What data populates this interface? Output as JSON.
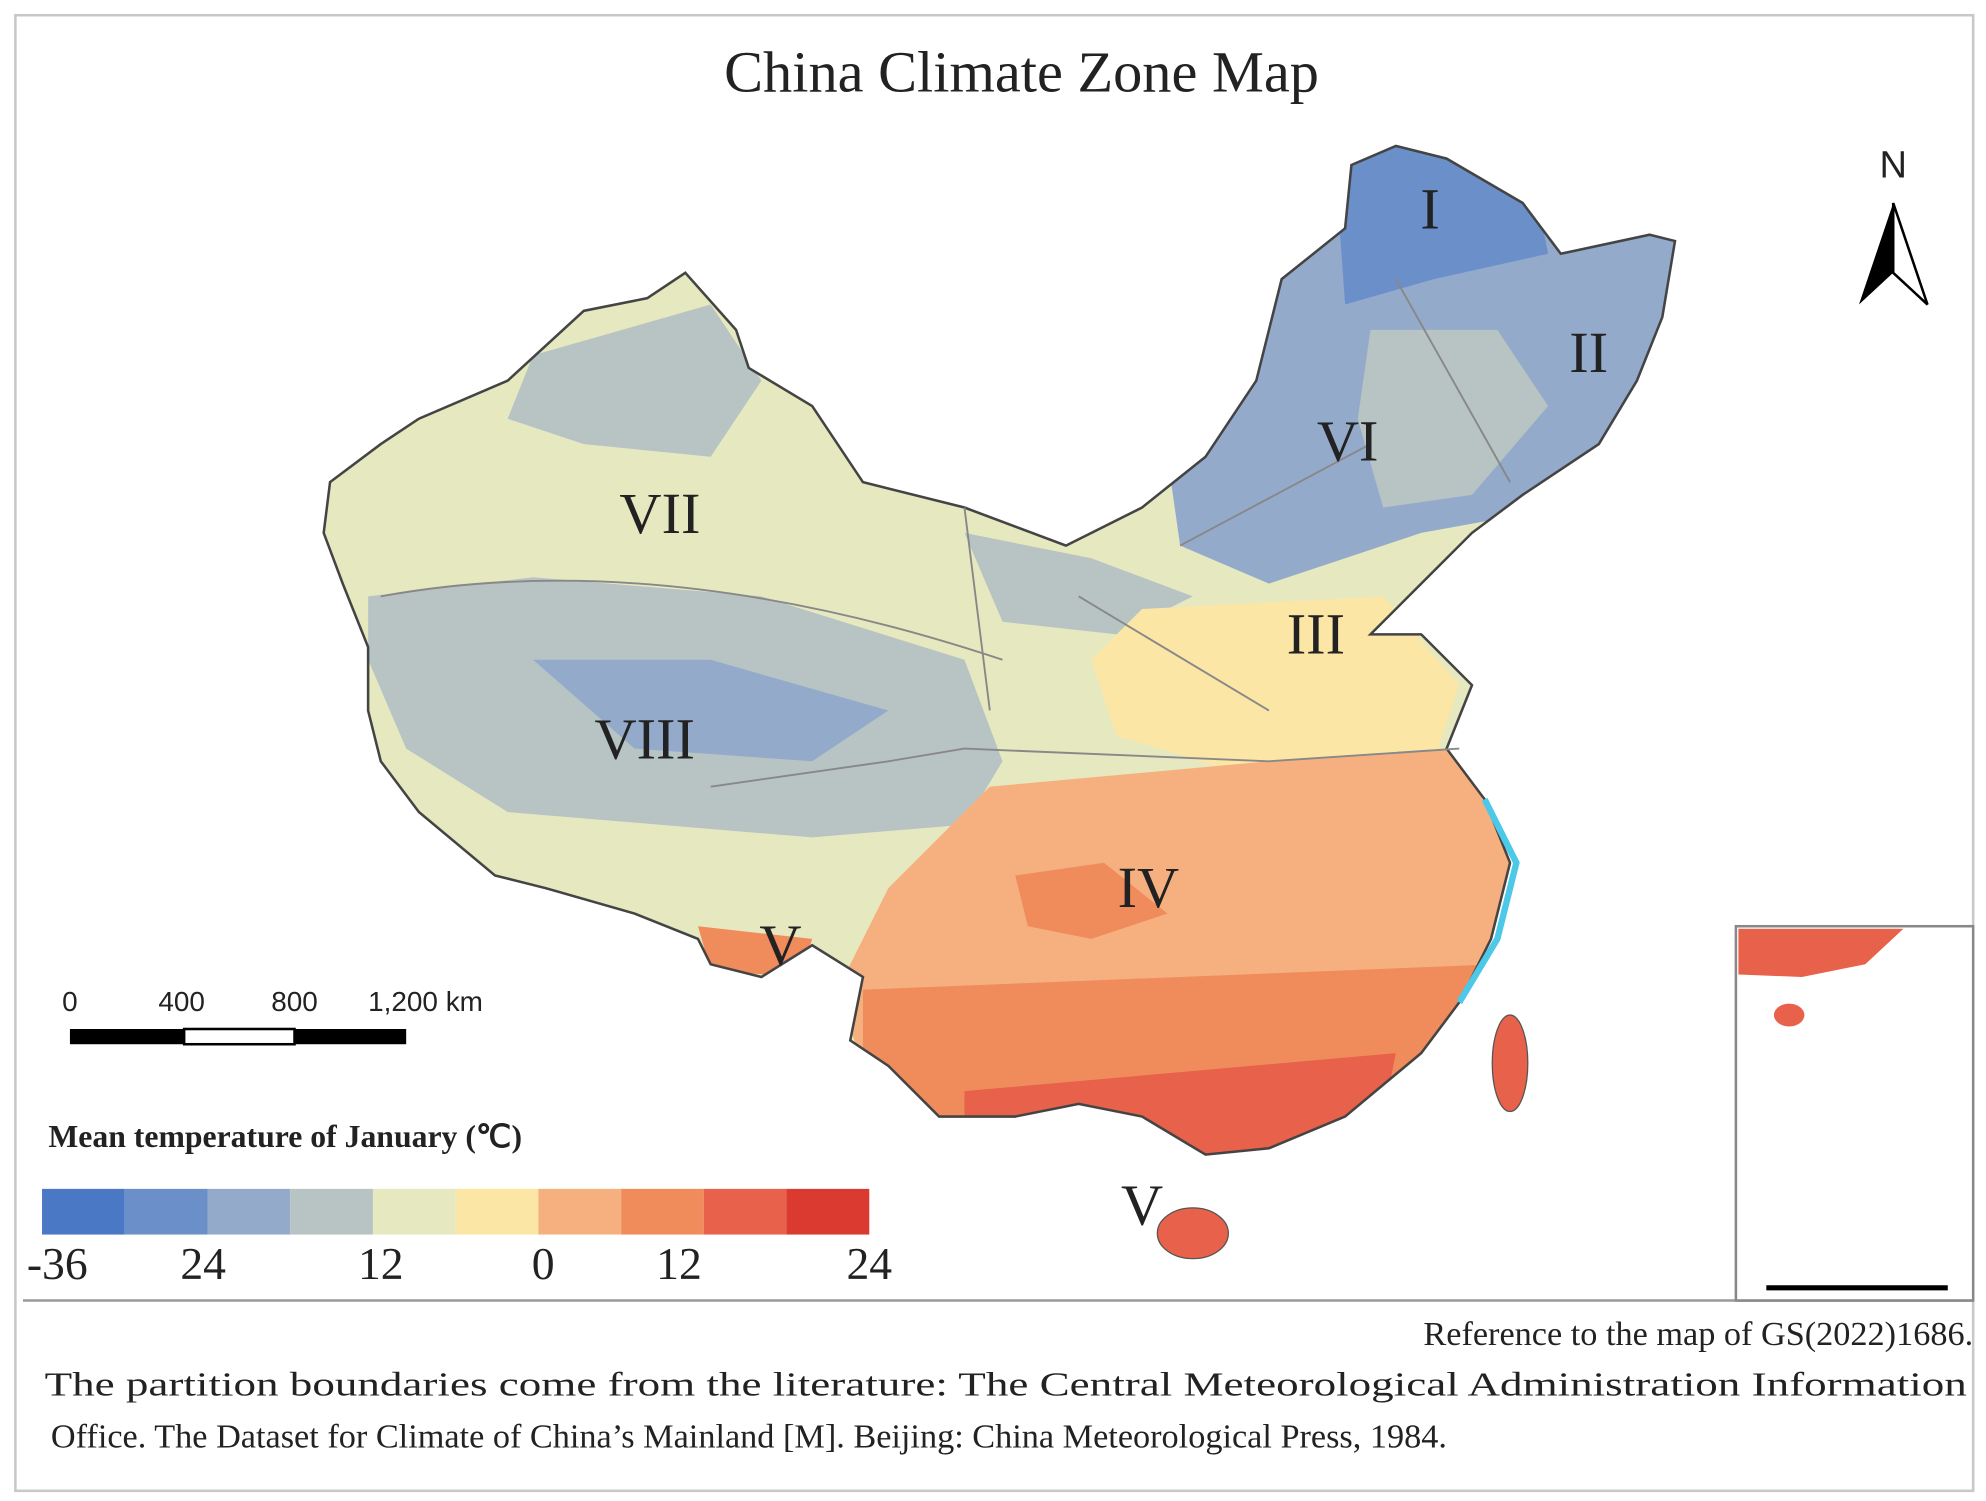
{
  "title": "China Climate Zone Map",
  "north": "N",
  "zones": [
    {
      "label": "I"
    },
    {
      "label": "II"
    },
    {
      "label": "VI"
    },
    {
      "label": "VII"
    },
    {
      "label": "III"
    },
    {
      "label": "VIII"
    },
    {
      "label": "IV"
    },
    {
      "label": "V"
    },
    {
      "label": "V"
    }
  ],
  "scale_bar": {
    "labels": [
      "0",
      "400",
      "800",
      "1,200 km"
    ]
  },
  "legend": {
    "title": "Mean temperature of January (℃)",
    "colors": [
      "#4a78c4",
      "#6b8fc9",
      "#93aacb",
      "#b8c4c4",
      "#e6e8bf",
      "#fbe6a6",
      "#f6b07f",
      "#f08b5c",
      "#e8614a",
      "#da3a2f"
    ],
    "ticks": [
      "-36",
      "24",
      "12",
      "0",
      "12",
      "24"
    ]
  },
  "notes": [
    "Reference to the map of GS(2022)1686.",
    "The partition boundaries come from the literature:  The Central Meteorological Administration Information",
    "Office. The Dataset for Climate of China’s Mainland [M]. Beijing:  China Meteorological Press, 1984."
  ]
}
